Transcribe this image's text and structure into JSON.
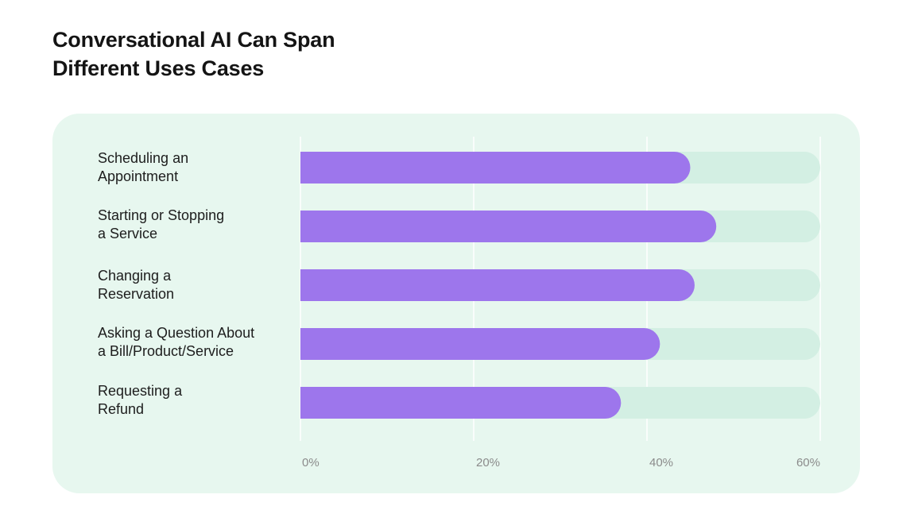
{
  "title_lines": [
    "Conversational AI Can Span",
    "Different Uses Cases"
  ],
  "colors": {
    "bar": "#9d76ec",
    "track": "#d3efe3",
    "panel": "#e7f7ef",
    "grid": "#ffffff",
    "tick": "#8b8b8b"
  },
  "chart_data": {
    "type": "bar",
    "orientation": "horizontal",
    "title": "Conversational AI Can Span Different Uses Cases",
    "categories": [
      [
        "Scheduling an",
        "Appointment"
      ],
      [
        "Starting or Stopping",
        "a Service"
      ],
      [
        "Changing a",
        "Reservation"
      ],
      [
        "Asking a  Question About",
        "a Bill/Product/Service"
      ],
      [
        "Requesting a",
        "Refund"
      ]
    ],
    "values": [
      45,
      48,
      45.5,
      41.5,
      37
    ],
    "unit": "%",
    "xlim": [
      0,
      60
    ],
    "x_ticks": [
      "0%",
      "20%",
      "40%",
      "60%"
    ],
    "x_tick_values": [
      0,
      20,
      40,
      60
    ],
    "grid": true,
    "legend": false
  }
}
